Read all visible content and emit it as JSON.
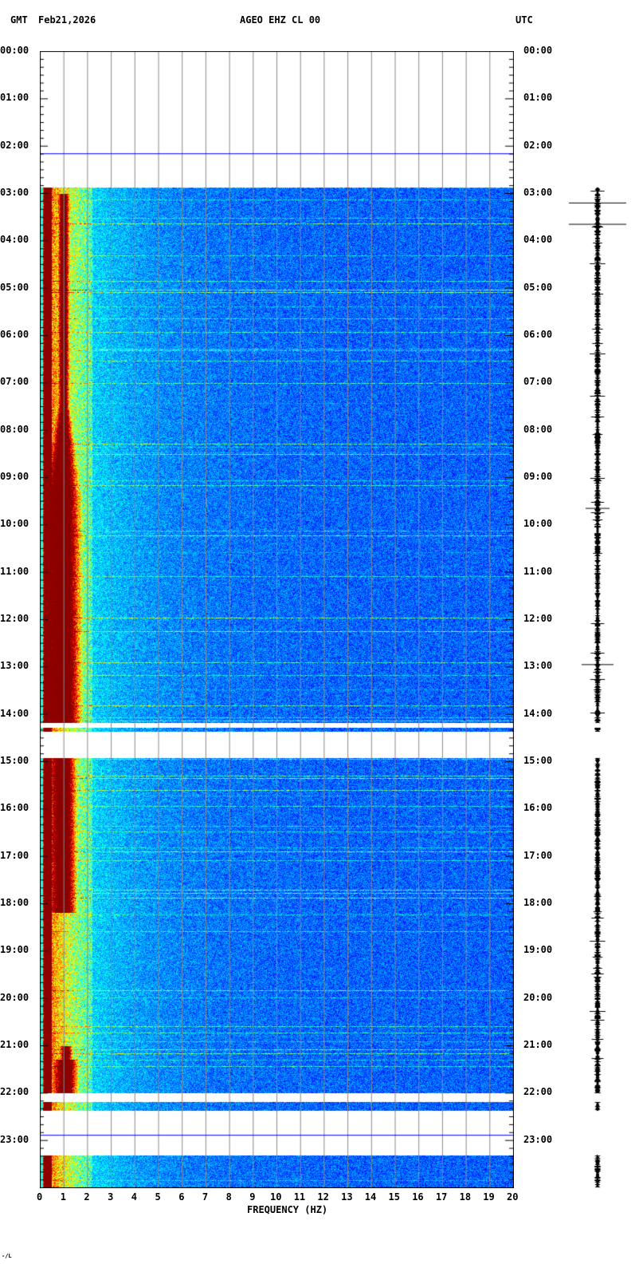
{
  "header": {
    "left_tz": "GMT",
    "date": "Feb21,2026",
    "station": "AGEO EHZ CL 00",
    "right_tz": "UTC"
  },
  "chart_data": {
    "type": "heatmap",
    "title": "AGEO EHZ CL 00",
    "xlabel": "FREQUENCY (HZ)",
    "ylabel": "",
    "xlim": [
      0,
      20
    ],
    "ylim_hours": [
      0,
      24
    ],
    "x_ticks": [
      "0",
      "1",
      "2",
      "3",
      "4",
      "5",
      "6",
      "7",
      "8",
      "9",
      "10",
      "11",
      "12",
      "13",
      "14",
      "15",
      "16",
      "17",
      "18",
      "19",
      "20"
    ],
    "y_ticks": [
      "00:00",
      "01:00",
      "02:00",
      "03:00",
      "04:00",
      "05:00",
      "06:00",
      "07:00",
      "08:00",
      "09:00",
      "10:00",
      "11:00",
      "12:00",
      "13:00",
      "14:00",
      "15:00",
      "16:00",
      "17:00",
      "18:00",
      "19:00",
      "20:00",
      "21:00",
      "22:00",
      "23:00"
    ],
    "grid": true,
    "colormap": "jet",
    "data_segments_hours": [
      [
        2.88,
        14.18
      ],
      [
        14.29,
        14.36
      ],
      [
        14.93,
        22.01
      ],
      [
        22.18,
        22.38
      ],
      [
        23.31,
        24.0
      ]
    ],
    "gap_markers_hours": [
      2.16,
      22.89
    ],
    "high_energy_band_hz": [
      0.3,
      1.8
    ]
  },
  "footer_mark": "-/L"
}
